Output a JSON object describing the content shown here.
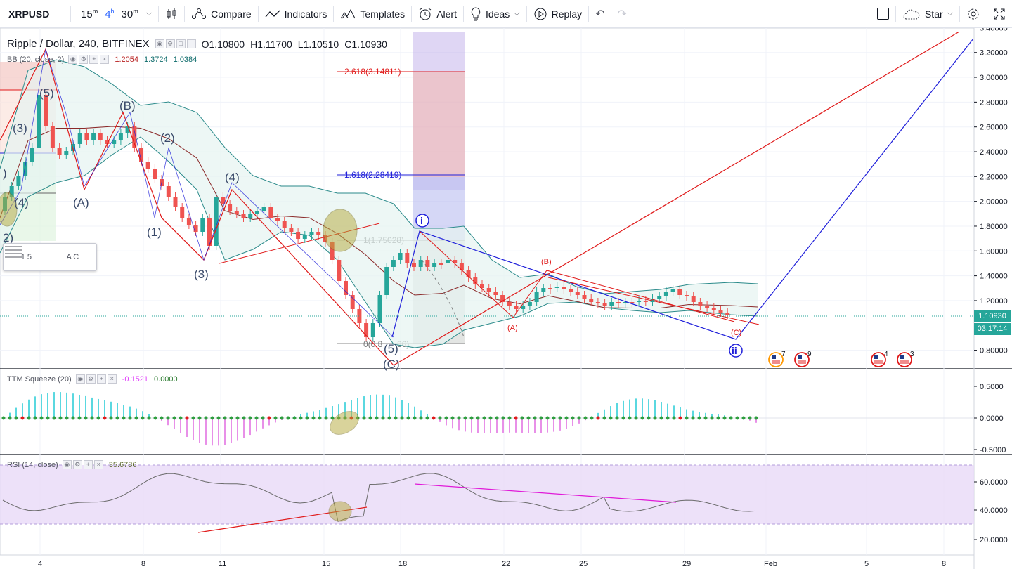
{
  "toolbar": {
    "symbol": "XRPUSD",
    "intervals": [
      "15m",
      "4h",
      "30m"
    ],
    "interval_active": "4h",
    "compare": "Compare",
    "indicators": "Indicators",
    "templates": "Templates",
    "alert": "Alert",
    "ideas": "Ideas",
    "replay": "Replay",
    "star": "Star"
  },
  "legend": {
    "title": "Ripple / Dollar, 240, BITFINEX",
    "o_label": "O",
    "o": "1.10800",
    "h_label": "H",
    "h": "1.11700",
    "l_label": "L",
    "l": "1.10510",
    "c_label": "C",
    "c": "1.10930",
    "bb_label": "BB (20, close, 2)",
    "bb_basis": "1.2054",
    "bb_upper": "1.3724",
    "bb_lower": "1.0384",
    "ttm_label": "TTM Squeeze (20)",
    "ttm_v1": "-0.1521",
    "ttm_v2": "0.0000",
    "rsi_label": "RSI (14, close)",
    "rsi_v": "35.6786"
  },
  "price_axis": [
    "3.40000",
    "3.20000",
    "3.00000",
    "2.80000",
    "2.60000",
    "2.40000",
    "2.20000",
    "2.00000",
    "1.80000",
    "1.60000",
    "1.40000",
    "1.20000",
    "0.80000"
  ],
  "last_price": "1.10930",
  "countdown": "03:17:14",
  "ttm_axis": [
    "0.5000",
    "0.0000",
    "-0.5000"
  ],
  "rsi_axis": [
    "60.0000",
    "40.0000",
    "20.0000"
  ],
  "time_axis": [
    "4",
    "8",
    "11",
    "15",
    "18",
    "22",
    "25",
    "29",
    "Feb",
    "5",
    "8"
  ],
  "fib": {
    "f2618": "2.618(3.14811)",
    "f1618": "1.618(2.28419)",
    "f1": "1(1.75028)",
    "f0": "0(0.8",
    "f0b": "36)"
  },
  "waves": {
    "impulse_left": [
      "(3)",
      ")",
      "(4)",
      "2)",
      "(5)"
    ],
    "abc_major": [
      "(B)",
      "(A)",
      "(C)"
    ],
    "impulse_mid": [
      "(2)",
      "(1)",
      "(4)",
      "(3)",
      "(5)"
    ],
    "circle_i": "i",
    "circle_ii": "ii",
    "abc_small": [
      "(A)",
      "(B)",
      "(C)"
    ]
  },
  "events": [
    {
      "count": "7"
    },
    {
      "count": "9"
    },
    {
      "count": "4"
    },
    {
      "count": "3"
    }
  ],
  "drawtools": {
    "a": "1 5",
    "b": "A C"
  },
  "colors": {
    "up": "#26a69a",
    "down": "#ef5350",
    "bb": "#2a8a8a",
    "rsi_band": "#e9d9f8",
    "blue": "#1e1eda",
    "red": "#e01a1a"
  }
}
